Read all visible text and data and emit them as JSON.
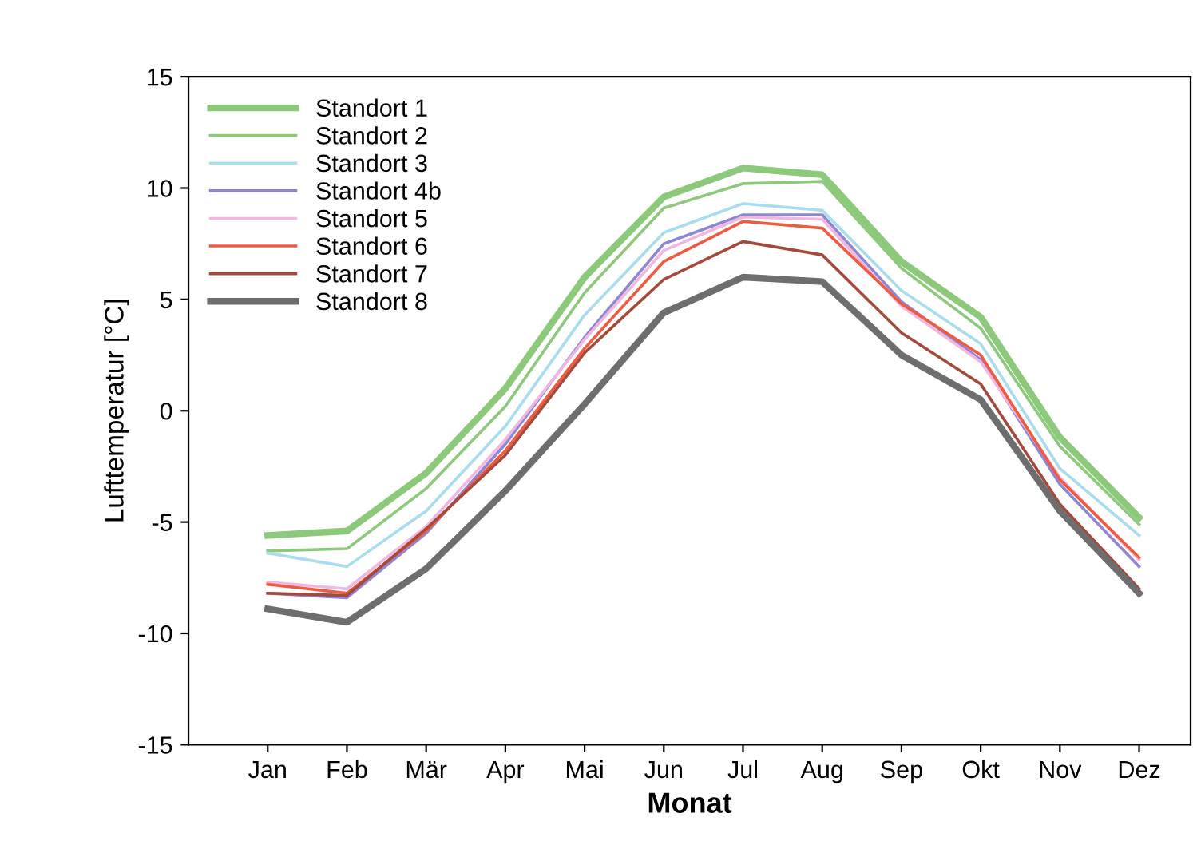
{
  "chart_data": {
    "type": "line",
    "xlabel": "Monat",
    "ylabel": "Lufttemperatur [°C]",
    "categories": [
      "Jan",
      "Feb",
      "Mär",
      "Apr",
      "Mai",
      "Jun",
      "Jul",
      "Aug",
      "Sep",
      "Okt",
      "Nov",
      "Dez"
    ],
    "ylim": [
      -15,
      15
    ],
    "yticks": [
      -15,
      -10,
      -5,
      0,
      5,
      10,
      15
    ],
    "grid": false,
    "legend": "top left",
    "marker": "none",
    "line_style": "solid",
    "series": [
      {
        "name": "Standort 1",
        "color": "#8cc97a",
        "values": [
          -5.6,
          -5.4,
          -2.8,
          1.0,
          6.0,
          9.6,
          10.9,
          10.6,
          6.7,
          4.2,
          -1.2,
          -4.8
        ]
      },
      {
        "name": "Standort 2",
        "color": "#8cc97a",
        "values": [
          -6.3,
          -6.2,
          -3.5,
          0.2,
          5.3,
          9.1,
          10.2,
          10.3,
          6.4,
          3.7,
          -1.6,
          -5.1
        ]
      },
      {
        "name": "Standort 3",
        "color": "#a9dced",
        "values": [
          -6.4,
          -7.0,
          -4.5,
          -0.7,
          4.3,
          8.0,
          9.3,
          9.0,
          5.4,
          3.0,
          -2.6,
          -5.6
        ]
      },
      {
        "name": "Standort 4b",
        "color": "#8f86d6",
        "values": [
          -8.2,
          -8.4,
          -5.5,
          -1.5,
          3.3,
          7.5,
          8.8,
          8.8,
          4.9,
          2.3,
          -3.3,
          -7.0
        ]
      },
      {
        "name": "Standort 5",
        "color": "#f0b8e0",
        "values": [
          -7.7,
          -8.0,
          -5.2,
          -1.3,
          3.2,
          7.2,
          8.7,
          8.6,
          4.7,
          2.2,
          -3.0,
          -6.7
        ]
      },
      {
        "name": "Standort 6",
        "color": "#f05a40",
        "values": [
          -7.8,
          -8.2,
          -5.4,
          -1.8,
          2.8,
          6.7,
          8.5,
          8.2,
          4.8,
          2.5,
          -3.1,
          -6.6
        ]
      },
      {
        "name": "Standort 7",
        "color": "#a54a3a",
        "values": [
          -8.2,
          -8.3,
          -5.3,
          -2.0,
          2.6,
          5.9,
          7.6,
          7.0,
          3.5,
          1.2,
          -4.2,
          -8.0
        ]
      },
      {
        "name": "Standort 8",
        "color": "#6e6e6e",
        "values": [
          -8.9,
          -9.5,
          -7.1,
          -3.6,
          0.3,
          4.4,
          6.0,
          5.8,
          2.5,
          0.5,
          -4.5,
          -8.2
        ]
      }
    ]
  }
}
